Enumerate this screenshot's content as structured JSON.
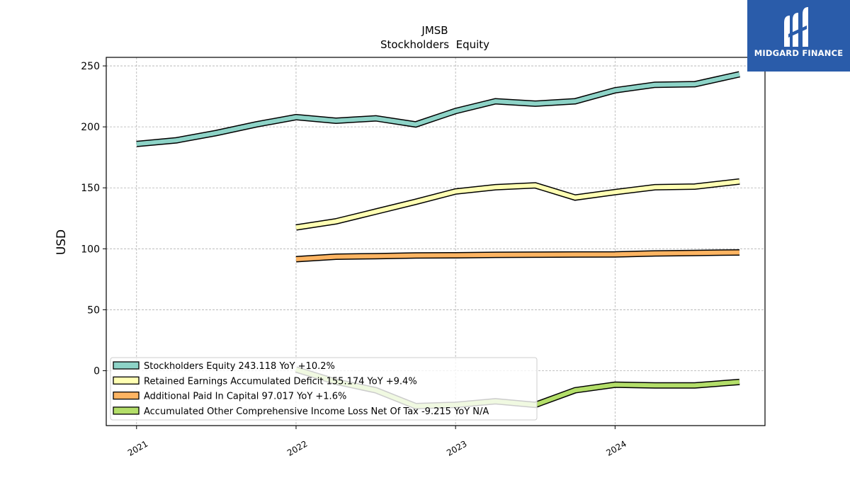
{
  "chart_data": {
    "type": "line",
    "title": "JMSB",
    "subtitle": "Stockholders  Equity",
    "xlabel": "",
    "ylabel": "USD",
    "x_ticks": [
      "2021",
      "2022",
      "2023",
      "2024"
    ],
    "x_range": [
      2020.81,
      2024.94
    ],
    "ylim": [
      -45,
      257
    ],
    "y_ticks": [
      0,
      50,
      100,
      150,
      200,
      250
    ],
    "grid": true,
    "legend_position": "lower-left",
    "x": [
      2021.0,
      2021.25,
      2021.5,
      2021.75,
      2022.0,
      2022.25,
      2022.5,
      2022.75,
      2023.0,
      2023.25,
      2023.5,
      2023.75,
      2024.0,
      2024.25,
      2024.5,
      2024.78
    ],
    "series": [
      {
        "name": "Stockholders Equity",
        "legend_label": "Stockholders Equity  243.118 YoY +10.2%",
        "color": "#8dd3c7",
        "values": [
          186,
          189,
          195,
          202,
          208,
          205,
          207,
          202,
          213,
          221,
          219,
          221,
          230,
          234.5,
          235,
          243.1
        ]
      },
      {
        "name": "Retained Earnings Accumulated Deficit",
        "legend_label": "Retained Earnings Accumulated Deficit  155.174 YoY +9.4%",
        "color": "#ffffb3",
        "values": [
          null,
          null,
          null,
          null,
          117.5,
          122.5,
          130.5,
          138.5,
          147,
          150.5,
          152,
          142,
          146.5,
          150.5,
          151,
          155.2
        ]
      },
      {
        "name": "Additional Paid In Capital",
        "legend_label": "Additional Paid In Capital  97.017 YoY +1.6%",
        "color": "#fdb462",
        "values": [
          null,
          null,
          null,
          null,
          91.5,
          93.5,
          94,
          94.5,
          94.7,
          95,
          95.2,
          95.3,
          95.4,
          96.2,
          96.6,
          97.0
        ]
      },
      {
        "name": "Accumulated Other Comprehensive Income Loss Net Of Tax",
        "legend_label": "Accumulated Other Comprehensive Income Loss Net Of Tax  -9.215 YoY N/A",
        "color": "#b3de69",
        "values": [
          null,
          null,
          null,
          null,
          1,
          -9,
          -16,
          -29,
          -28,
          -25,
          -28,
          -16,
          -11.5,
          -12,
          -12,
          -9.2
        ]
      }
    ]
  },
  "watermark": {
    "text": "MIDGARD FINANCE",
    "background": "#2a5caa"
  }
}
